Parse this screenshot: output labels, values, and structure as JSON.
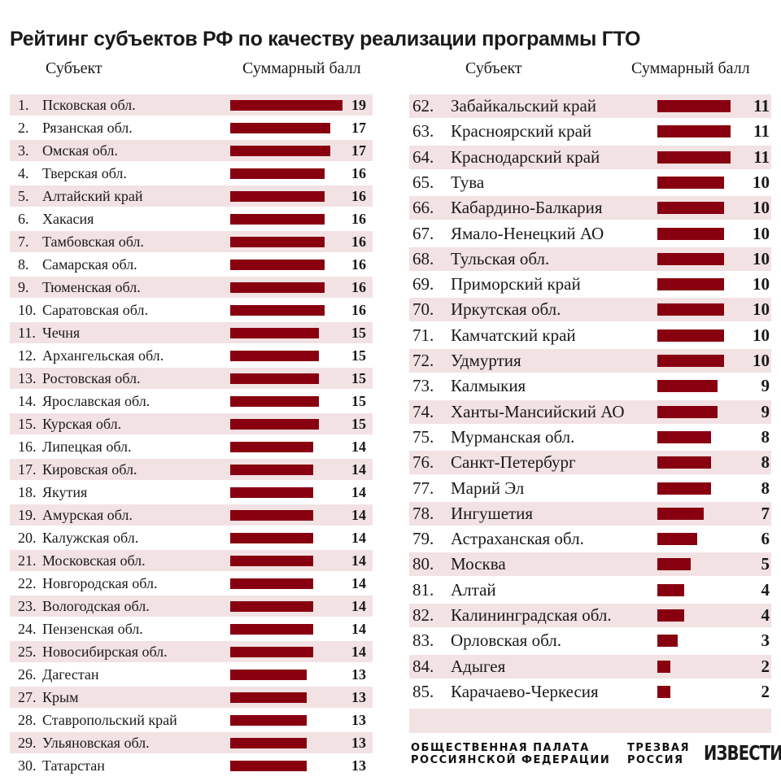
{
  "title": "Рейтинг субъектов РФ по качеству реализации программы ГТО",
  "headers": {
    "subject": "Субъект",
    "score": "Суммарный балл"
  },
  "colors": {
    "bar": "#880010",
    "shade": "#f2e2e4"
  },
  "footer": {
    "logo1_line1": "ОБЩЕСТВЕННАЯ ПАЛАТА",
    "logo1_line2": "РОССИЯНСКОЙ ФЕДЕРАЦИИ",
    "logo2_line1": "ТРЕЗВАЯ",
    "logo2_line2": "РОССИЯ",
    "logo3": "ИЗВЕСТИЯ"
  },
  "chart_data": {
    "type": "bar",
    "orientation": "horizontal",
    "title": "Рейтинг субъектов РФ по качеству реализации программы ГТО",
    "categories": [
      "Псковская обл.",
      "Рязанская обл.",
      "Омская обл.",
      "Тверская обл.",
      "Алтайский край",
      "Хакасия",
      "Тамбовская обл.",
      "Самарская обл.",
      "Тюменская обл.",
      "Саратовская обл.",
      "Чечня",
      "Архангельская обл.",
      "Ростовская обл.",
      "Ярославская обл.",
      "Курская обл.",
      "Липецкая обл.",
      "Кировская обл.",
      "Якутия",
      "Амурская обл.",
      "Калужская обл.",
      "Московская обл.",
      "Новгородская обл.",
      "Вологодская обл.",
      "Пензенская обл.",
      "Новосибирская обл.",
      "Дагестан",
      "Крым",
      "Ставропольский край",
      "Ульяновская обл.",
      "Татарстан",
      "Забайкальский край",
      "Красноярский край",
      "Краснодарский край",
      "Тува",
      "Кабардино-Балкария",
      "Ямало-Ненецкий АО",
      "Тульская обл.",
      "Приморский край",
      "Иркутская обл.",
      "Камчатский край",
      "Удмуртия",
      "Калмыкия",
      "Ханты-Мансийский АО",
      "Мурманская обл.",
      "Санкт-Петербург",
      "Марий Эл",
      "Ингушетия",
      "Астраханская обл.",
      "Москва",
      "Алтай",
      "Калининградская обл.",
      "Орловская обл.",
      "Адыгея",
      "Карачаево-Черкесия"
    ],
    "ranks": [
      1,
      2,
      3,
      4,
      5,
      6,
      7,
      8,
      9,
      10,
      11,
      12,
      13,
      14,
      15,
      16,
      17,
      18,
      19,
      20,
      21,
      22,
      23,
      24,
      25,
      26,
      27,
      28,
      29,
      30,
      62,
      63,
      64,
      65,
      66,
      67,
      68,
      69,
      70,
      71,
      72,
      73,
      74,
      75,
      76,
      77,
      78,
      79,
      80,
      81,
      82,
      83,
      84,
      85
    ],
    "values": [
      19,
      17,
      17,
      16,
      16,
      16,
      16,
      16,
      16,
      16,
      15,
      15,
      15,
      15,
      15,
      14,
      14,
      14,
      14,
      14,
      14,
      14,
      14,
      14,
      14,
      13,
      13,
      13,
      13,
      13,
      11,
      11,
      11,
      10,
      10,
      10,
      10,
      10,
      10,
      10,
      10,
      9,
      9,
      8,
      8,
      8,
      7,
      6,
      5,
      4,
      4,
      3,
      2,
      2
    ],
    "xlabel": "Суммарный балл",
    "ylabel": "Субъект"
  }
}
